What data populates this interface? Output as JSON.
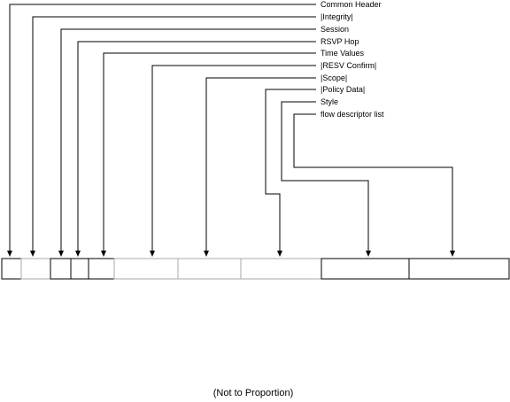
{
  "fields": [
    {
      "label": "Common Header",
      "optional": false
    },
    {
      "label": "|Integrity|",
      "optional": true
    },
    {
      "label": "Session",
      "optional": false
    },
    {
      "label": "RSVP Hop",
      "optional": false
    },
    {
      "label": "Time Values",
      "optional": false
    },
    {
      "label": "|RESV Confirm|",
      "optional": true
    },
    {
      "label": "|Scope|",
      "optional": true
    },
    {
      "label": "|Policy Data|",
      "optional": true
    },
    {
      "label": "Style",
      "optional": false
    },
    {
      "label": "flow descriptor list",
      "optional": false
    }
  ],
  "caption": "(Not to Proportion)",
  "colors": {
    "line": "#000000",
    "optional_box_border": "#aaaaaa",
    "mandatory_box_border": "#000000"
  }
}
